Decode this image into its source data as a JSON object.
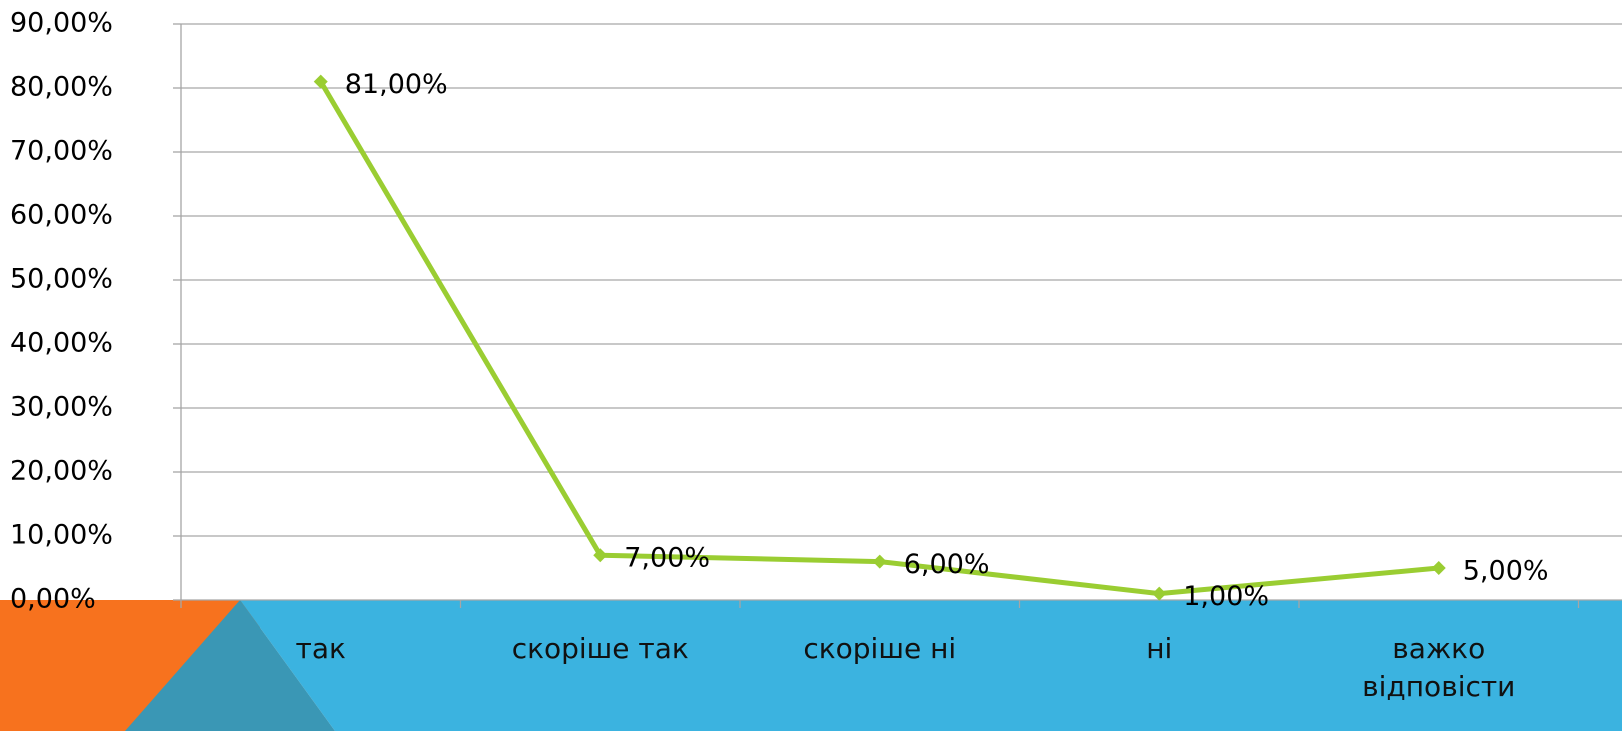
{
  "chart_data": {
    "type": "line",
    "categories": [
      "так",
      "скоріше так",
      "скоріше ні",
      "ні",
      "важко відповісти"
    ],
    "series": [
      {
        "color": "#9acd32",
        "values": [
          81,
          7,
          6,
          1,
          5
        ],
        "value_labels": [
          "81,00%",
          "7,00%",
          "6,00%",
          "1,00%",
          "5,00%"
        ]
      }
    ],
    "ylim": [
      0,
      90
    ],
    "yticks": [
      {
        "value": 0,
        "label": "0,00%"
      },
      {
        "value": 10,
        "label": "10,00%"
      },
      {
        "value": 20,
        "label": "20,00%"
      },
      {
        "value": 30,
        "label": "30,00%"
      },
      {
        "value": 40,
        "label": "40,00%"
      },
      {
        "value": 50,
        "label": "50,00%"
      },
      {
        "value": 60,
        "label": "60,00%"
      },
      {
        "value": 70,
        "label": "70,00%"
      },
      {
        "value": 80,
        "label": "80,00%"
      },
      {
        "value": 90,
        "label": "90,00%"
      }
    ],
    "grid": true
  }
}
